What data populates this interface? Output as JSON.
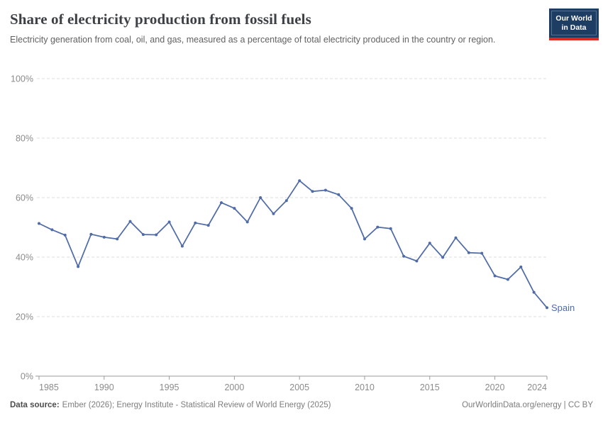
{
  "header": {
    "title": "Share of electricity production from fossil fuels",
    "subtitle": "Electricity generation from coal, oil, and gas, measured as a percentage of total electricity produced in the country or region.",
    "logo": {
      "line1": "Our World",
      "line2": "in Data"
    }
  },
  "chart_data": {
    "type": "line",
    "title": "Share of electricity production from fossil fuels",
    "xlabel": "",
    "ylabel": "",
    "xlim": [
      1985,
      2024
    ],
    "ylim": [
      0,
      100
    ],
    "grid": true,
    "legend_position": "end-of-line-label",
    "xticks": [
      1985,
      1990,
      1995,
      2000,
      2005,
      2010,
      2015,
      2020,
      2024
    ],
    "yticks": [
      {
        "value": 0,
        "label": "0%"
      },
      {
        "value": 20,
        "label": "20%"
      },
      {
        "value": 40,
        "label": "40%"
      },
      {
        "value": 60,
        "label": "60%"
      },
      {
        "value": 80,
        "label": "80%"
      },
      {
        "value": 100,
        "label": "100%"
      }
    ],
    "series": [
      {
        "name": "Spain",
        "color": "#4f6ba8",
        "x": [
          1985,
          1986,
          1987,
          1988,
          1989,
          1990,
          1991,
          1992,
          1993,
          1994,
          1995,
          1996,
          1997,
          1998,
          1999,
          2000,
          2001,
          2002,
          2003,
          2004,
          2005,
          2006,
          2007,
          2008,
          2009,
          2010,
          2011,
          2012,
          2013,
          2014,
          2015,
          2016,
          2017,
          2018,
          2019,
          2020,
          2021,
          2022,
          2023,
          2024
        ],
        "values": [
          51.3,
          49.2,
          47.4,
          36.8,
          47.7,
          46.7,
          46.1,
          52.0,
          47.6,
          47.5,
          51.8,
          43.7,
          51.5,
          50.7,
          58.3,
          56.4,
          51.8,
          60.0,
          54.6,
          59.0,
          65.7,
          62.1,
          62.5,
          61.0,
          56.4,
          46.1,
          50.1,
          49.6,
          40.3,
          38.7,
          44.7,
          39.9,
          46.5,
          41.5,
          41.3,
          33.7,
          32.5,
          36.7,
          28.2,
          23.0
        ]
      }
    ]
  },
  "footer": {
    "datasource_label": "Data source:",
    "datasource_text": "Ember (2026); Energy Institute - Statistical Review of World Energy (2025)",
    "credit": "OurWorldinData.org/energy | CC BY"
  },
  "colors": {
    "line": "#4f6ba8",
    "gridline": "#dedede",
    "axis": "#9b9b9b",
    "tick_text": "#8b8b8b",
    "logo_bg": "#1d3d63",
    "logo_bar": "#dc2a20"
  }
}
